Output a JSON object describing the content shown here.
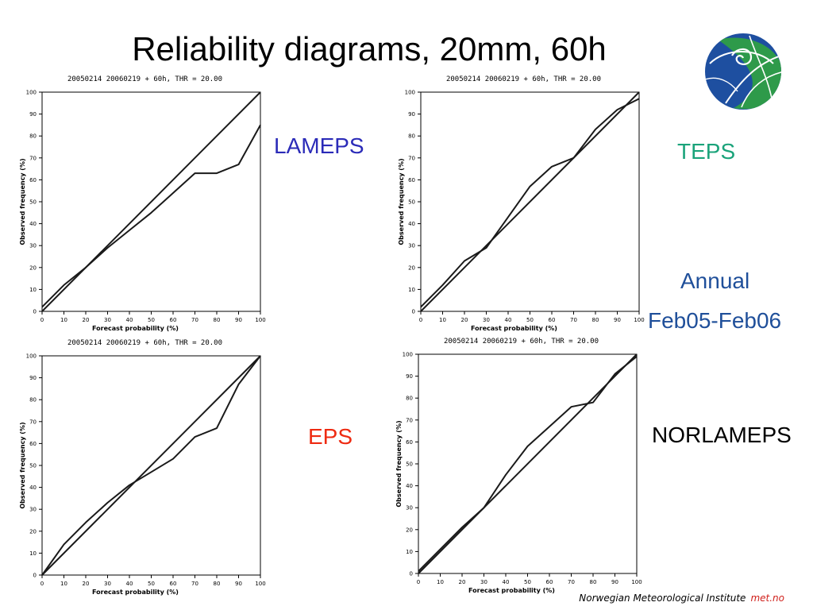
{
  "slide": {
    "title": "Reliability diagrams, 20mm, 60h",
    "annual": "Annual",
    "period": "Feb05-Feb06",
    "footer_institute": "Norwegian Meteorological Institute",
    "footer_brand": "met.no"
  },
  "colors": {
    "lameps": "#2b2bb8",
    "teps": "#1aa37a",
    "annual": "#1f4f9a",
    "eps": "#ee2b12",
    "norlameps": "#000000",
    "footer_brand": "#d0211c"
  },
  "chart_data": [
    {
      "type": "line",
      "label": "LAMEPS",
      "title": "20050214 20060219 + 60h, THR = 20.00",
      "xlabel": "Forecast probability (%)",
      "ylabel": "Observed frequency (%)",
      "xlim": [
        0,
        100
      ],
      "ylim": [
        0,
        100
      ],
      "xticks": [
        0,
        10,
        20,
        30,
        40,
        50,
        60,
        70,
        80,
        90,
        100
      ],
      "yticks": [
        0,
        10,
        20,
        30,
        40,
        50,
        60,
        70,
        80,
        90,
        100
      ],
      "series": [
        {
          "x": [
            0,
            100
          ],
          "y": [
            0,
            100
          ]
        },
        {
          "x": [
            0,
            10,
            20,
            30,
            40,
            50,
            60,
            70,
            80,
            90,
            100
          ],
          "y": [
            2,
            12,
            20,
            29,
            37,
            45,
            54,
            63,
            63,
            67,
            85
          ]
        }
      ]
    },
    {
      "type": "line",
      "label": "TEPS",
      "title": "20050214 20060219 + 60h, THR = 20.00",
      "xlabel": "Forecast probability (%)",
      "ylabel": "Observed frequency (%)",
      "xlim": [
        0,
        100
      ],
      "ylim": [
        0,
        100
      ],
      "xticks": [
        0,
        10,
        20,
        30,
        40,
        50,
        60,
        70,
        80,
        90,
        100
      ],
      "yticks": [
        0,
        10,
        20,
        30,
        40,
        50,
        60,
        70,
        80,
        90,
        100
      ],
      "series": [
        {
          "x": [
            0,
            100
          ],
          "y": [
            0,
            100
          ]
        },
        {
          "x": [
            0,
            10,
            20,
            30,
            40,
            50,
            60,
            70,
            80,
            90,
            100
          ],
          "y": [
            2,
            12,
            23,
            29,
            43,
            57,
            66,
            70,
            83,
            92,
            97
          ]
        }
      ]
    },
    {
      "type": "line",
      "label": "EPS",
      "title": "20050214 20060219 + 60h, THR = 20.00",
      "xlabel": "Forecast probability (%)",
      "ylabel": "Observed frequency (%)",
      "xlim": [
        0,
        100
      ],
      "ylim": [
        0,
        100
      ],
      "xticks": [
        0,
        10,
        20,
        30,
        40,
        50,
        60,
        70,
        80,
        90,
        100
      ],
      "yticks": [
        0,
        10,
        20,
        30,
        40,
        50,
        60,
        70,
        80,
        90,
        100
      ],
      "series": [
        {
          "x": [
            0,
            100
          ],
          "y": [
            0,
            100
          ]
        },
        {
          "x": [
            0,
            10,
            20,
            30,
            40,
            50,
            60,
            70,
            80,
            90,
            100
          ],
          "y": [
            0,
            14,
            24,
            33,
            41,
            47,
            53,
            63,
            67,
            87,
            100
          ]
        }
      ]
    },
    {
      "type": "line",
      "label": "NORLAMEPS",
      "title": "20050214 20060219 + 60h, THR = 20.00",
      "xlabel": "Forecast probability (%)",
      "ylabel": "Observed frequency (%)",
      "xlim": [
        0,
        100
      ],
      "ylim": [
        0,
        100
      ],
      "xticks": [
        0,
        10,
        20,
        30,
        40,
        50,
        60,
        70,
        80,
        90,
        100
      ],
      "yticks": [
        0,
        10,
        20,
        30,
        40,
        50,
        60,
        70,
        80,
        90,
        100
      ],
      "series": [
        {
          "x": [
            0,
            100
          ],
          "y": [
            0,
            100
          ]
        },
        {
          "x": [
            0,
            10,
            20,
            30,
            40,
            50,
            60,
            70,
            80,
            90,
            100
          ],
          "y": [
            1,
            11,
            21,
            30,
            45,
            58,
            67,
            76,
            78,
            91,
            99
          ]
        }
      ]
    }
  ]
}
